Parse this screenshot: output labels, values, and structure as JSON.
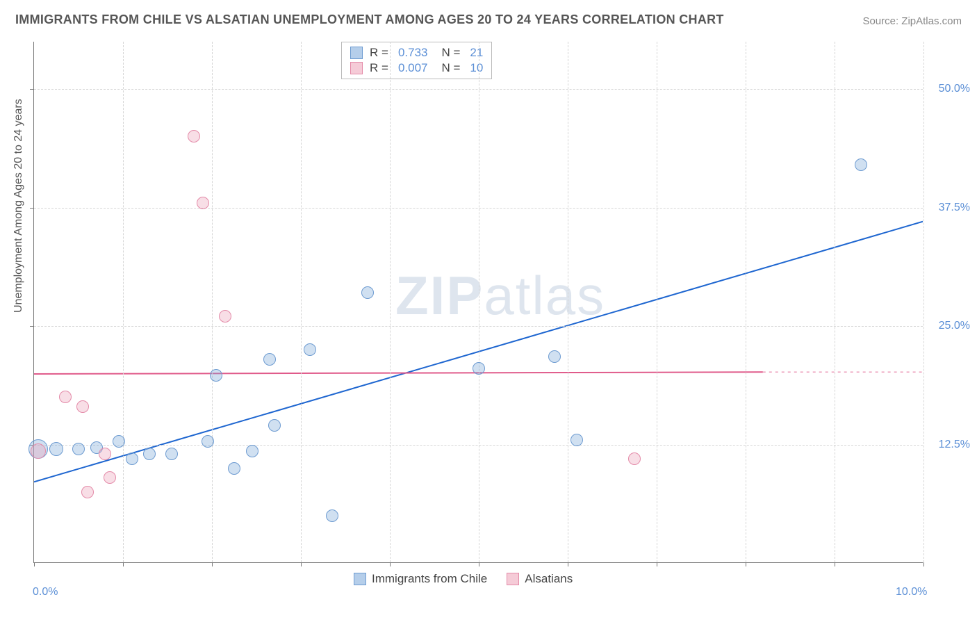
{
  "title": "IMMIGRANTS FROM CHILE VS ALSATIAN UNEMPLOYMENT AMONG AGES 20 TO 24 YEARS CORRELATION CHART",
  "source_label": "Source: ZipAtlas.com",
  "y_axis_label": "Unemployment Among Ages 20 to 24 years",
  "watermark_a": "ZIP",
  "watermark_b": "atlas",
  "chart": {
    "type": "scatter",
    "xlim": [
      0,
      10
    ],
    "ylim": [
      0,
      55
    ],
    "x_ticks": [
      0,
      1,
      2,
      3,
      4,
      5,
      6,
      7,
      8,
      9,
      10
    ],
    "x_tick_labels": {
      "0": "0.0%",
      "10": "10.0%"
    },
    "y_gridlines": [
      12.5,
      25,
      37.5,
      50
    ],
    "y_tick_labels": [
      "12.5%",
      "25.0%",
      "37.5%",
      "50.0%"
    ],
    "background_color": "#ffffff",
    "grid_color": "#d5d5d5",
    "axis_color": "#777777",
    "tick_label_color": "#5b8fd6",
    "marker_radius_default": 9,
    "series": [
      {
        "name": "Immigrants from Chile",
        "color_fill": "rgba(120,165,216,0.35)",
        "color_stroke": "#6d9bd1",
        "r_value": "0.733",
        "n_value": "21",
        "trend": {
          "x1": 0,
          "y1": 8.5,
          "x2": 10,
          "y2": 36,
          "color": "#1e66d0",
          "width": 2,
          "dash_extend": false
        },
        "points": [
          {
            "x": 0.05,
            "y": 12.0,
            "r": 14
          },
          {
            "x": 0.25,
            "y": 12.0,
            "r": 10
          },
          {
            "x": 0.5,
            "y": 12.0,
            "r": 9
          },
          {
            "x": 0.7,
            "y": 12.2,
            "r": 9
          },
          {
            "x": 0.95,
            "y": 12.8,
            "r": 9
          },
          {
            "x": 1.1,
            "y": 11.0,
            "r": 9
          },
          {
            "x": 1.3,
            "y": 11.5,
            "r": 9
          },
          {
            "x": 1.55,
            "y": 11.5,
            "r": 9
          },
          {
            "x": 1.95,
            "y": 12.8,
            "r": 9
          },
          {
            "x": 2.05,
            "y": 19.8,
            "r": 9
          },
          {
            "x": 2.25,
            "y": 10.0,
            "r": 9
          },
          {
            "x": 2.45,
            "y": 11.8,
            "r": 9
          },
          {
            "x": 2.7,
            "y": 14.5,
            "r": 9
          },
          {
            "x": 2.65,
            "y": 21.5,
            "r": 9
          },
          {
            "x": 3.1,
            "y": 22.5,
            "r": 9
          },
          {
            "x": 3.35,
            "y": 5.0,
            "r": 9
          },
          {
            "x": 3.75,
            "y": 28.5,
            "r": 9
          },
          {
            "x": 5.0,
            "y": 20.5,
            "r": 9
          },
          {
            "x": 5.85,
            "y": 21.8,
            "r": 9
          },
          {
            "x": 6.1,
            "y": 13.0,
            "r": 9
          },
          {
            "x": 9.3,
            "y": 42.0,
            "r": 9
          }
        ]
      },
      {
        "name": "Alsatians",
        "color_fill": "rgba(236,160,182,0.35)",
        "color_stroke": "#e48aa8",
        "r_value": "0.007",
        "n_value": "10",
        "trend": {
          "x1": 0,
          "y1": 19.9,
          "x2": 8.2,
          "y2": 20.1,
          "color": "#e05a8a",
          "width": 2,
          "dash_extend": true,
          "dash_to_x": 10
        },
        "points": [
          {
            "x": 0.05,
            "y": 11.8,
            "r": 11
          },
          {
            "x": 0.35,
            "y": 17.5,
            "r": 9
          },
          {
            "x": 0.55,
            "y": 16.5,
            "r": 9
          },
          {
            "x": 0.6,
            "y": 7.5,
            "r": 9
          },
          {
            "x": 0.8,
            "y": 11.5,
            "r": 9
          },
          {
            "x": 0.85,
            "y": 9.0,
            "r": 9
          },
          {
            "x": 1.8,
            "y": 45.0,
            "r": 9
          },
          {
            "x": 1.9,
            "y": 38.0,
            "r": 9
          },
          {
            "x": 2.15,
            "y": 26.0,
            "r": 9
          },
          {
            "x": 6.75,
            "y": 11.0,
            "r": 9
          }
        ]
      }
    ]
  },
  "top_legend": {
    "r_label": "R  =",
    "n_label": "N  ="
  },
  "bottom_legend": {
    "series1": "Immigrants from Chile",
    "series2": "Alsatians"
  }
}
